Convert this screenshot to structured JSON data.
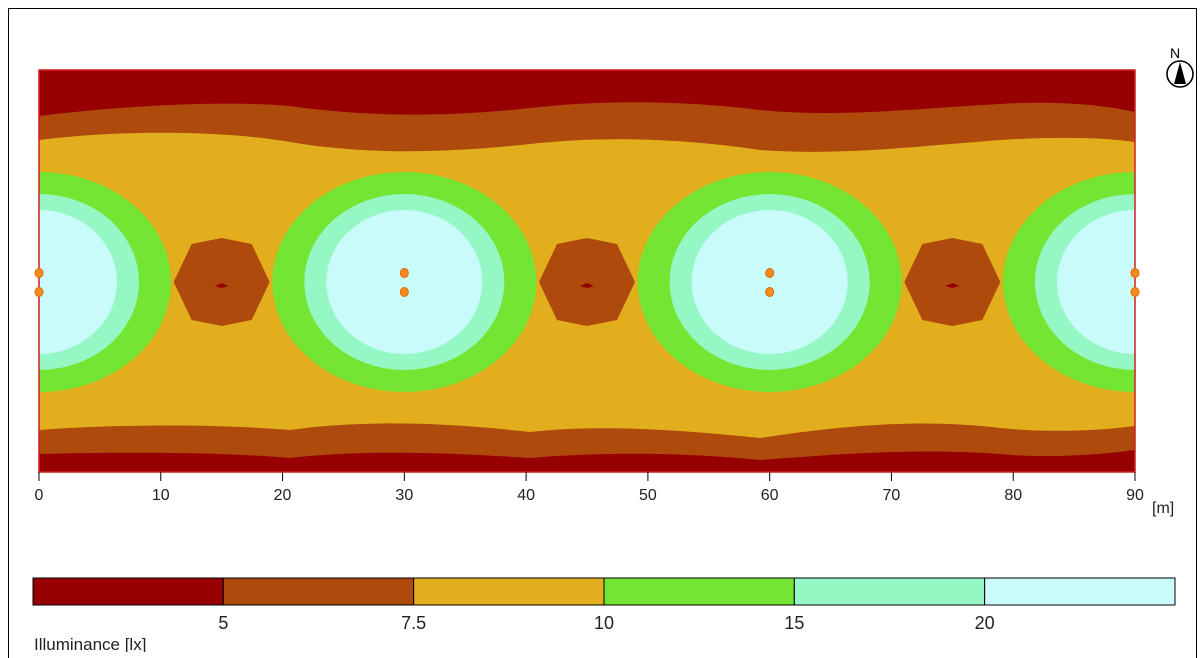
{
  "chart_data": {
    "type": "heatmap",
    "title": "",
    "xlabel": "",
    "ylabel": "",
    "xlim": [
      0,
      90
    ],
    "x_ticks": [
      0,
      10,
      20,
      30,
      40,
      50,
      60,
      70,
      80,
      90
    ],
    "x_unit": "[m]",
    "compass_label": "N",
    "luminaire_x_positions": [
      0,
      30,
      60,
      90
    ],
    "legend": {
      "label": "Illuminance [lx]",
      "bins": [
        {
          "color": "#960000",
          "upper": "5"
        },
        {
          "color": "#ae4a0c",
          "upper": "7.5"
        },
        {
          "color": "#e3ae1d",
          "upper": "10"
        },
        {
          "color": "#74e532",
          "upper": "15"
        },
        {
          "color": "#95f7c4",
          "upper": "20"
        },
        {
          "color": "#c9fbfb",
          "upper": ""
        }
      ]
    }
  }
}
